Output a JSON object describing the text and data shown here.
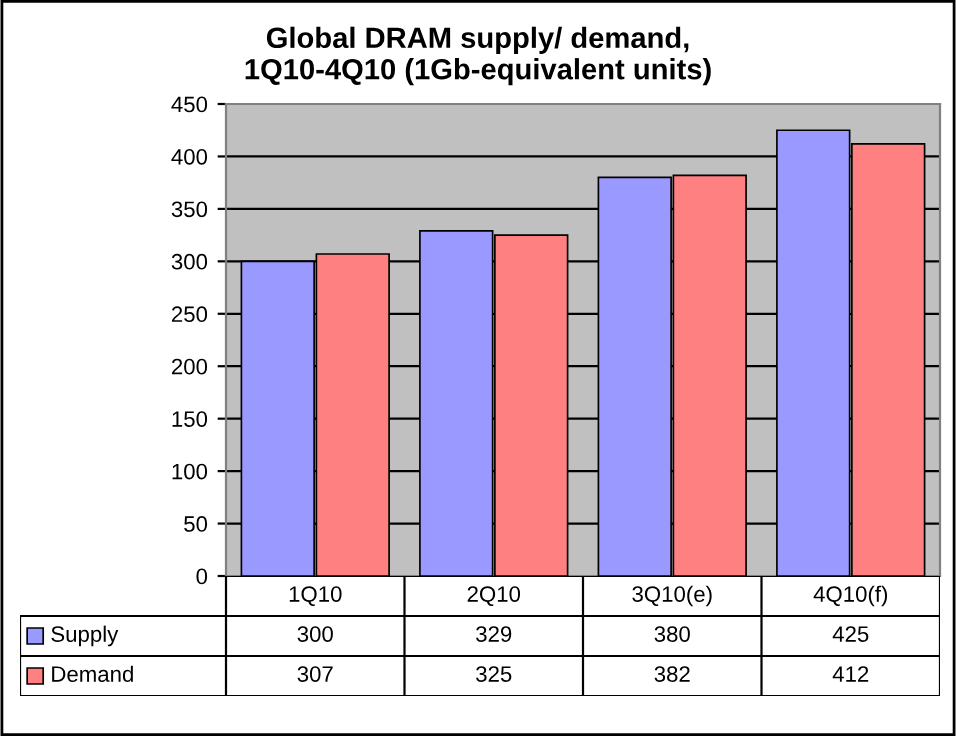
{
  "chart_data": {
    "type": "bar",
    "title": "Global DRAM supply/ demand,\n1Q10-4Q10 (1Gb-equivalent units)",
    "categories": [
      "1Q10",
      "2Q10",
      "3Q10(e)",
      "4Q10(f)"
    ],
    "series": [
      {
        "name": "Supply",
        "color": "#9999ff",
        "values": [
          300,
          329,
          380,
          425
        ]
      },
      {
        "name": "Demand",
        "color": "#ff8080",
        "values": [
          307,
          325,
          382,
          412
        ]
      }
    ],
    "ylim": [
      0,
      450
    ],
    "yticks": [
      0,
      50,
      100,
      150,
      200,
      250,
      300,
      350,
      400,
      450
    ],
    "grid": "y",
    "data_labels": true,
    "legend": "bottom"
  }
}
